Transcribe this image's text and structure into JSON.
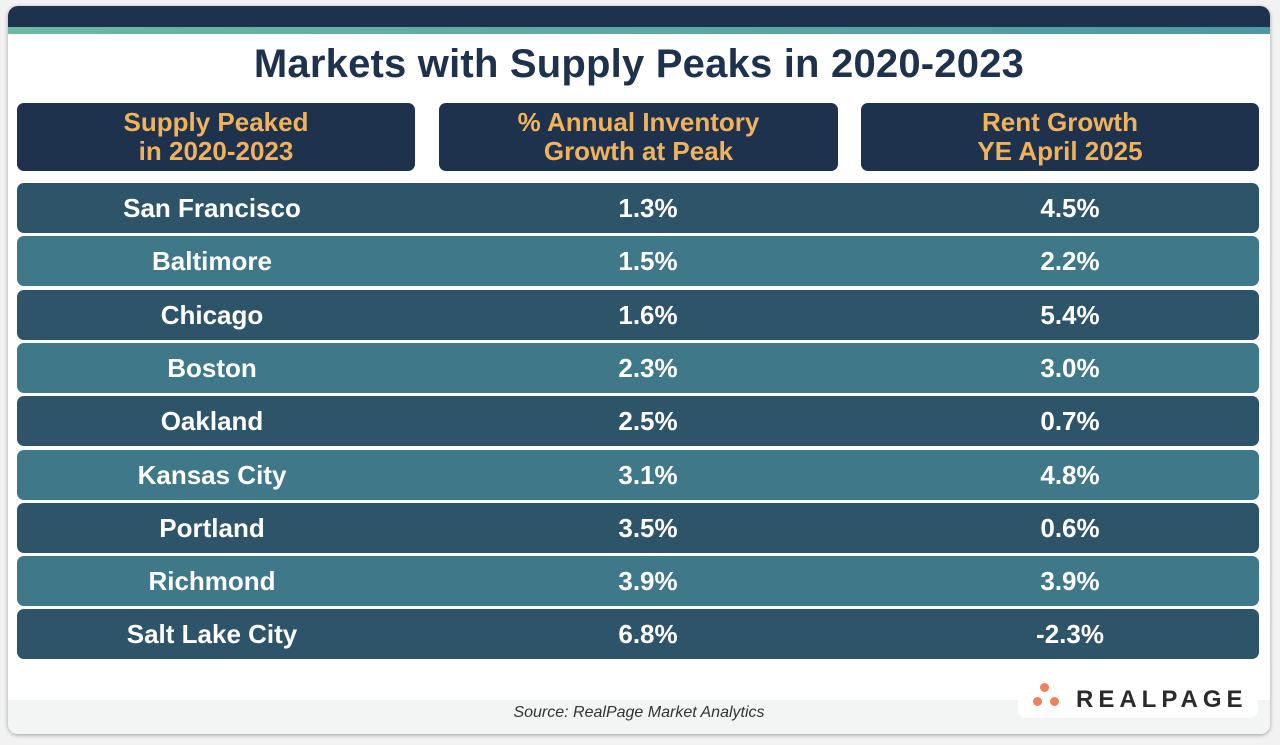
{
  "title": "Markets with Supply Peaks in 2020-2023",
  "colors": {
    "header_bg": "#1e314d",
    "header_text": "#f0b35c",
    "row_dark": "#2d5468",
    "row_light": "#3f7888",
    "accent_strip": "#6cb9a2",
    "logo_dots": "#f0805a"
  },
  "chart_data": {
    "type": "table",
    "columns": [
      "Supply Peaked\nin 2020-2023",
      "% Annual Inventory\nGrowth at Peak",
      "Rent Growth\nYE April 2025"
    ],
    "rows": [
      [
        "San Francisco",
        "1.3%",
        "4.5%"
      ],
      [
        "Baltimore",
        "1.5%",
        "2.2%"
      ],
      [
        "Chicago",
        "1.6%",
        "5.4%"
      ],
      [
        "Boston",
        "2.3%",
        "3.0%"
      ],
      [
        "Oakland",
        "2.5%",
        "0.7%"
      ],
      [
        "Kansas City",
        "3.1%",
        "4.8%"
      ],
      [
        "Portland",
        "3.5%",
        "0.6%"
      ],
      [
        "Richmond",
        "3.9%",
        "3.9%"
      ],
      [
        "Salt Lake City",
        "6.8%",
        "-2.3%"
      ]
    ]
  },
  "source": "Source: RealPage Market Analytics",
  "logo": "REALPAGE"
}
